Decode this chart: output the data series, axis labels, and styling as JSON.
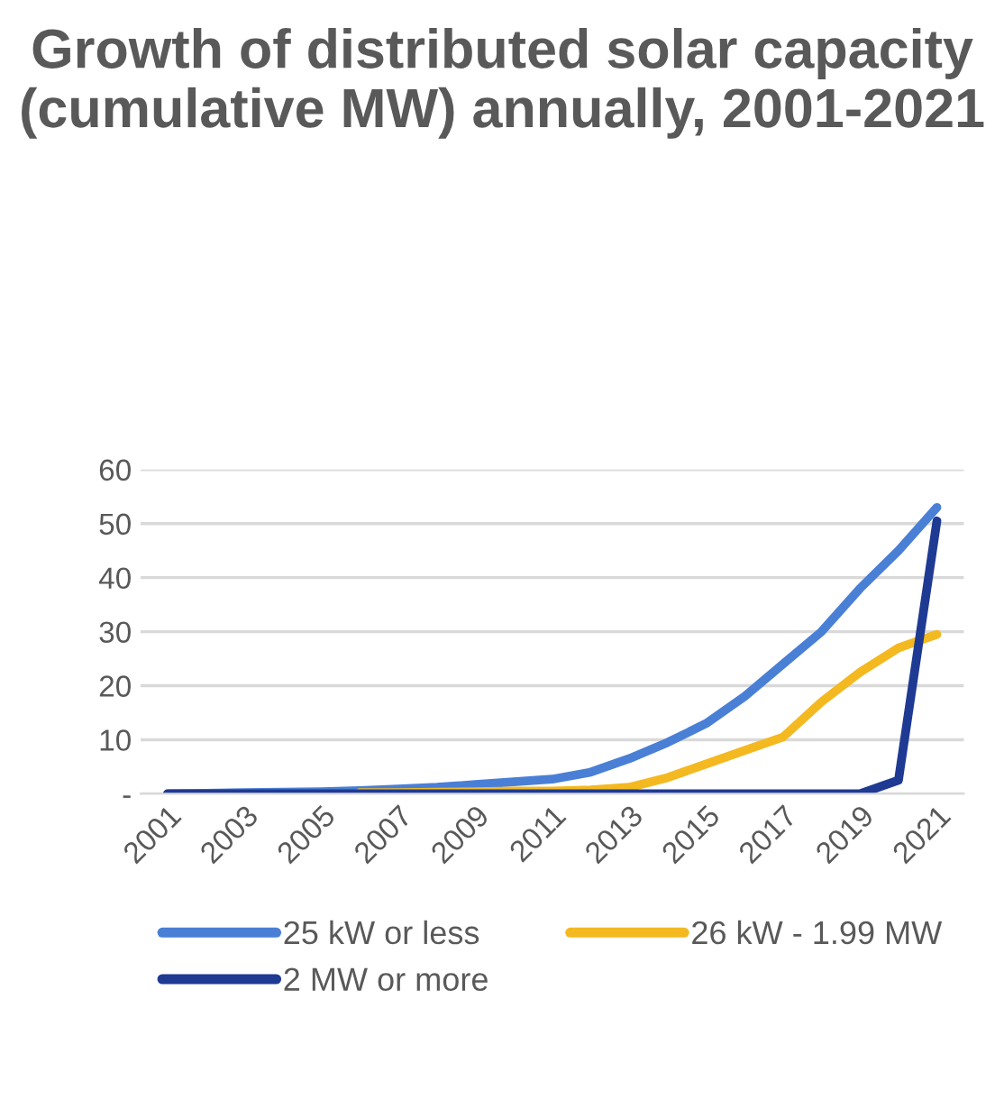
{
  "chart_data": {
    "type": "line",
    "title": "Growth of distributed solar capacity (cumulative MW) annually, 2001-2021",
    "categories": [
      "2001",
      null,
      "2003",
      null,
      "2005",
      null,
      "2007",
      null,
      "2009",
      null,
      "2011",
      null,
      "2013",
      null,
      "2015",
      null,
      "2017",
      null,
      "2019",
      null,
      "2021"
    ],
    "series": [
      {
        "name": "25 kW or less",
        "color": "#4a7fd6",
        "values": [
          0,
          0.1,
          0.2,
          0.3,
          0.4,
          0.6,
          0.9,
          1.2,
          1.7,
          2.2,
          2.7,
          4,
          6.5,
          9.5,
          13,
          18,
          24,
          30,
          38,
          45,
          53
        ]
      },
      {
        "name": "26 kW - 1.99 MW",
        "color": "#f4b921",
        "values": [
          null,
          null,
          null,
          null,
          null,
          0.2,
          0.2,
          0.3,
          0.4,
          0.5,
          0.5,
          0.7,
          1.2,
          3,
          5.5,
          8,
          10.5,
          17,
          22.5,
          27,
          29.5
        ]
      },
      {
        "name": "2 MW or more",
        "color": "#1f3a93",
        "values": [
          0,
          0,
          0,
          0,
          0,
          0,
          0,
          0,
          0,
          0,
          0,
          0,
          0,
          0,
          0,
          0,
          0,
          0,
          0,
          2.5,
          50.5
        ]
      }
    ],
    "ylim": [
      0,
      60
    ],
    "yticks": [
      {
        "value": 0,
        "label": "-"
      },
      10,
      20,
      30,
      40,
      50,
      60
    ],
    "grid": "y",
    "legend": "bottom"
  }
}
